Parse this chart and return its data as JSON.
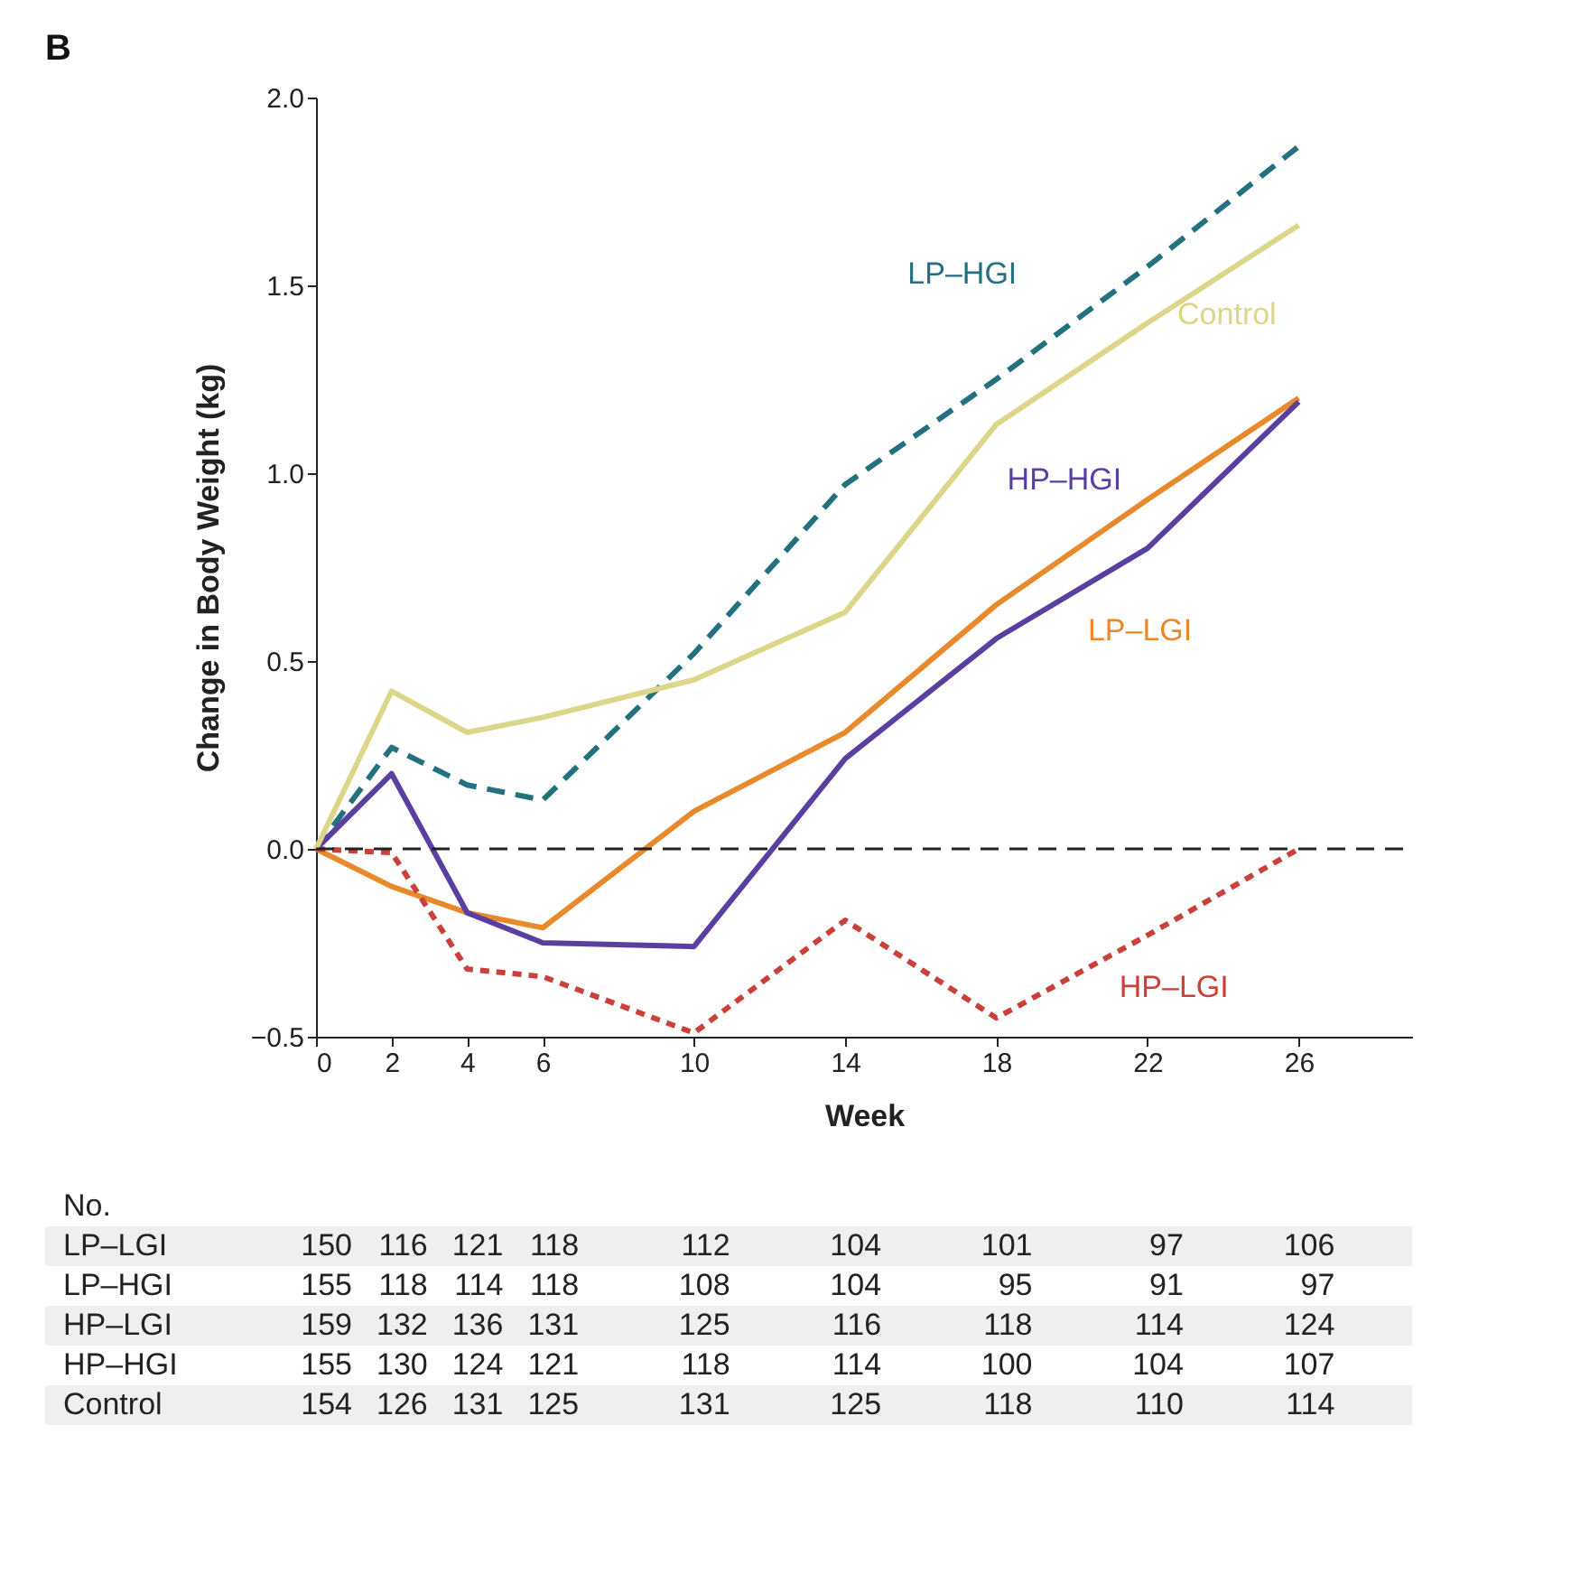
{
  "chart_data": {
    "type": "line",
    "title": "B",
    "xlabel": "Week",
    "ylabel": "Change in Body Weight (kg)",
    "x": [
      0,
      2,
      4,
      6,
      10,
      14,
      18,
      22,
      26
    ],
    "series": [
      {
        "name": "LP–LGI",
        "color": "#e8892b",
        "line_style": "solid",
        "values": [
          0,
          -0.1,
          -0.17,
          -0.21,
          0.1,
          0.31,
          0.65,
          0.93,
          1.2
        ]
      },
      {
        "name": "LP–HGI",
        "color": "#23707f",
        "line_style": "dashed",
        "values": [
          0,
          0.27,
          0.17,
          0.13,
          0.52,
          0.97,
          1.25,
          1.55,
          1.87
        ]
      },
      {
        "name": "HP–LGI",
        "color": "#c9413a",
        "line_style": "dotted",
        "values": [
          0,
          -0.01,
          -0.32,
          -0.34,
          -0.49,
          -0.19,
          -0.45,
          -0.23,
          0
        ]
      },
      {
        "name": "HP–HGI",
        "color": "#5b3fa0",
        "line_style": "solid",
        "values": [
          0,
          0.2,
          -0.17,
          -0.25,
          -0.26,
          0.24,
          0.56,
          0.8,
          1.19
        ]
      },
      {
        "name": "Control",
        "color": "#dcd68a",
        "line_style": "solid",
        "values": [
          0,
          0.42,
          0.31,
          0.35,
          0.45,
          0.63,
          1.13,
          1.4,
          1.66
        ]
      }
    ],
    "xlim": [
      0,
      29
    ],
    "xticks": [
      0,
      2,
      4,
      6,
      10,
      14,
      18,
      22,
      26
    ],
    "ylim": [
      -0.5,
      2.0
    ],
    "yticks": [
      {
        "value": -0.5,
        "label": "−0.5"
      },
      {
        "value": 0,
        "label": "0.0"
      },
      {
        "value": 0.5,
        "label": "0.5"
      },
      {
        "value": 1,
        "label": "1.0"
      },
      {
        "value": 1.5,
        "label": "1.5"
      },
      {
        "value": 2,
        "label": "2.0"
      }
    ],
    "ref_lines": [
      {
        "axis": "y",
        "value": 0,
        "color": "#222222",
        "line_style": "dashed"
      }
    ],
    "annotations": [
      "No.",
      "LP–LGI 150 116 121 118 112 104 101 97 106",
      "LP–HGI 155 118 114 118 108 104 95 91 97",
      "HP–LGI 159 132 136 131 125 116 118 114 124",
      "HP–HGI 155 130 124 121 118 114 100 104 107",
      "Control 154 126 131 125 131 125 118 110 114"
    ]
  }
}
